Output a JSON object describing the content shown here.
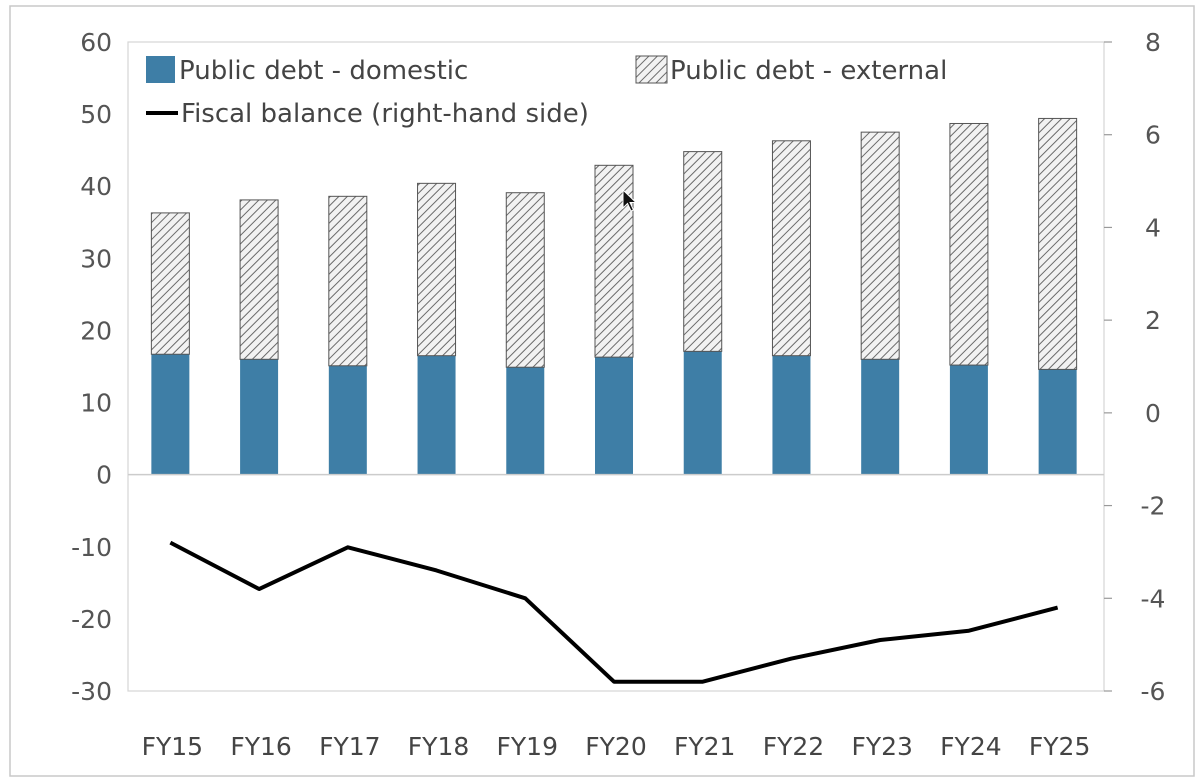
{
  "chart_data": {
    "type": "bar",
    "stacked": true,
    "categories": [
      "FY15",
      "FY16",
      "FY17",
      "FY18",
      "FY19",
      "FY20",
      "FY21",
      "FY22",
      "FY23",
      "FY24",
      "FY25"
    ],
    "series": [
      {
        "name": "Public debt - domestic",
        "kind": "bar",
        "axis": "left",
        "color": "#3e7ea6",
        "values": [
          16.7,
          16.0,
          15.1,
          16.5,
          14.9,
          16.3,
          17.1,
          16.5,
          16.0,
          15.2,
          14.6
        ]
      },
      {
        "name": "Public debt - external",
        "kind": "bar",
        "axis": "left",
        "pattern": "diagonal-hatch",
        "values": [
          19.6,
          22.1,
          23.5,
          23.9,
          24.2,
          26.6,
          27.7,
          29.8,
          31.5,
          33.5,
          34.8
        ]
      },
      {
        "name": "Fiscal balance (right-hand side)",
        "kind": "line",
        "axis": "right",
        "color": "#000000",
        "values": [
          -2.8,
          -3.8,
          -2.9,
          -3.4,
          -4.0,
          -5.8,
          -5.8,
          -5.3,
          -4.9,
          -4.7,
          -4.2
        ]
      }
    ],
    "left_axis": {
      "ylim": [
        -30,
        60
      ],
      "ticks": [
        "60",
        "50",
        "40",
        "30",
        "20",
        "10",
        "0",
        "-10",
        "-20",
        "-30"
      ]
    },
    "right_axis": {
      "ylim": [
        -6,
        8
      ],
      "ticks": [
        "8",
        "6",
        "4",
        "2",
        "0",
        "-2",
        "-4",
        "-6"
      ]
    },
    "legend_position": "top-left",
    "grid": false
  }
}
